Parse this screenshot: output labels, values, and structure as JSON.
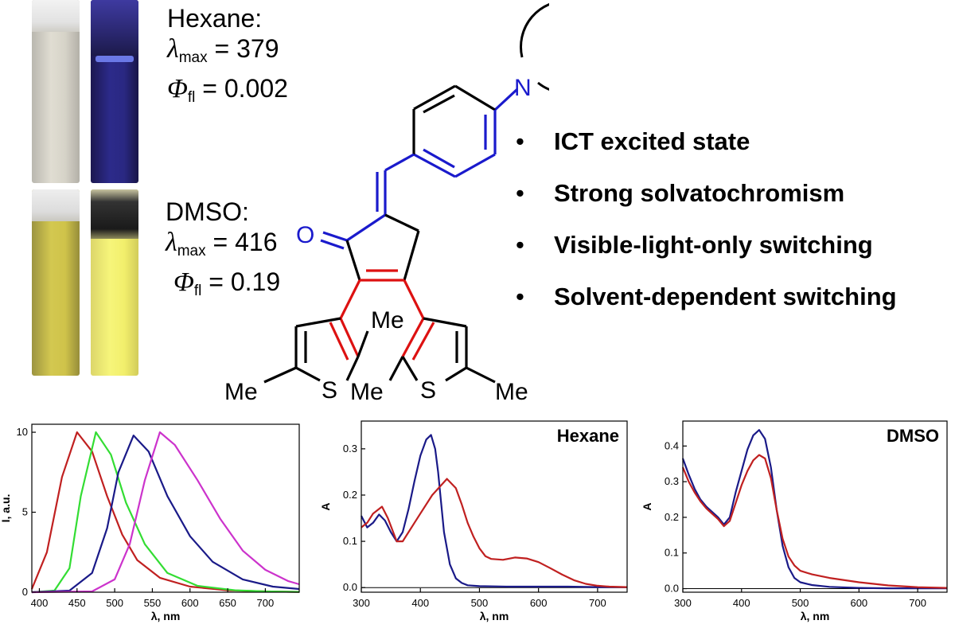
{
  "photos": {
    "hexane": [
      "hexane-ambient-cuvette",
      "hexane-uv-cuvette"
    ],
    "dmso": [
      "dmso-ambient-cuvette",
      "dmso-uv-cuvette"
    ]
  },
  "solvents": {
    "hexane": {
      "name": "Hexane:",
      "lambda_sym": "λ",
      "lambda_sub": "max",
      "lambda_val": "= 379",
      "phi_sym": "Φ",
      "phi_sub": "fl",
      "phi_val": "= 0.002"
    },
    "dmso": {
      "name": "DMSO:",
      "lambda_sym": "λ",
      "lambda_sub": "max",
      "lambda_val": "= 416",
      "phi_sym": "Φ",
      "phi_sub": "fl",
      "phi_val": "= 0.19"
    }
  },
  "structure": {
    "atoms": {
      "n": "N",
      "o": "O",
      "s1": "S",
      "s2": "S",
      "me1": "Me",
      "me2": "Me",
      "me3": "Me",
      "me4": "Me"
    },
    "colors": {
      "amine_arm": "#1a1acc",
      "switch_core": "#dd1111",
      "skeleton": "#000000"
    }
  },
  "bullets": {
    "marker": "•",
    "items": [
      "ICT excited state",
      "Strong solvatochromism",
      "Visible-light-only switching",
      "Solvent-dependent switching"
    ]
  },
  "chart_data": [
    {
      "type": "line",
      "title": "",
      "xlabel": "λ, nm",
      "ylabel": "I, a.u.",
      "xlim": [
        390,
        745
      ],
      "ylim": [
        0,
        10.5
      ],
      "xticks": [
        400,
        450,
        500,
        550,
        600,
        650,
        700
      ],
      "yticks": [
        0,
        5,
        10
      ],
      "series": [
        {
          "color": "#c02020",
          "x": [
            390,
            410,
            430,
            450,
            470,
            490,
            510,
            530,
            560,
            600,
            650,
            700,
            745
          ],
          "y": [
            0.2,
            2.5,
            7.2,
            10.0,
            8.8,
            6.0,
            3.6,
            2.0,
            0.9,
            0.35,
            0.12,
            0.05,
            0.02
          ]
        },
        {
          "color": "#33dd33",
          "x": [
            390,
            420,
            440,
            455,
            475,
            495,
            515,
            540,
            570,
            610,
            660,
            700,
            745
          ],
          "y": [
            0,
            0.1,
            1.5,
            6.0,
            10.0,
            8.6,
            5.6,
            3.0,
            1.2,
            0.4,
            0.12,
            0.05,
            0.02
          ]
        },
        {
          "color": "#1a1a88",
          "x": [
            390,
            440,
            470,
            490,
            505,
            525,
            545,
            570,
            600,
            630,
            670,
            710,
            745
          ],
          "y": [
            0,
            0.1,
            1.2,
            4.0,
            7.5,
            9.8,
            8.8,
            6.0,
            3.5,
            1.9,
            0.8,
            0.35,
            0.2
          ]
        },
        {
          "color": "#cc33cc",
          "x": [
            390,
            470,
            500,
            520,
            540,
            560,
            580,
            610,
            640,
            670,
            700,
            730,
            745
          ],
          "y": [
            0,
            0.05,
            0.8,
            3.0,
            7.0,
            10.0,
            9.2,
            7.0,
            4.6,
            2.6,
            1.4,
            0.7,
            0.5
          ]
        }
      ]
    },
    {
      "type": "line",
      "title": "Hexane",
      "xlabel": "λ, nm",
      "ylabel": "A",
      "xlim": [
        300,
        750
      ],
      "ylim": [
        -0.01,
        0.36
      ],
      "xticks": [
        300,
        400,
        500,
        600,
        700
      ],
      "yticks": [
        0.0,
        0.1,
        0.2,
        0.3
      ],
      "series": [
        {
          "color": "#1a1a88",
          "x": [
            300,
            310,
            320,
            330,
            340,
            350,
            360,
            370,
            380,
            390,
            400,
            410,
            418,
            425,
            430,
            440,
            450,
            460,
            470,
            480,
            500,
            550,
            600,
            650,
            700,
            750
          ],
          "y": [
            0.155,
            0.13,
            0.14,
            0.158,
            0.145,
            0.12,
            0.1,
            0.12,
            0.17,
            0.23,
            0.285,
            0.32,
            0.33,
            0.3,
            0.25,
            0.12,
            0.05,
            0.02,
            0.01,
            0.005,
            0.003,
            0.002,
            0.002,
            0.002,
            0.001,
            0.001
          ]
        },
        {
          "color": "#c02020",
          "x": [
            300,
            310,
            320,
            335,
            345,
            360,
            370,
            380,
            390,
            400,
            420,
            445,
            460,
            470,
            480,
            490,
            500,
            510,
            520,
            540,
            560,
            580,
            600,
            620,
            640,
            660,
            680,
            700,
            720,
            750
          ],
          "y": [
            0.13,
            0.14,
            0.16,
            0.175,
            0.15,
            0.1,
            0.1,
            0.12,
            0.14,
            0.16,
            0.2,
            0.235,
            0.215,
            0.18,
            0.14,
            0.11,
            0.085,
            0.068,
            0.062,
            0.06,
            0.065,
            0.063,
            0.055,
            0.042,
            0.028,
            0.016,
            0.008,
            0.004,
            0.002,
            0.001
          ]
        }
      ]
    },
    {
      "type": "line",
      "title": "DMSO",
      "xlabel": "λ, nm",
      "ylabel": "A",
      "xlim": [
        300,
        750
      ],
      "ylim": [
        -0.01,
        0.47
      ],
      "xticks": [
        300,
        400,
        500,
        600,
        700
      ],
      "yticks": [
        0.0,
        0.1,
        0.2,
        0.3,
        0.4
      ],
      "series": [
        {
          "color": "#1a1a88",
          "x": [
            300,
            310,
            320,
            330,
            340,
            350,
            360,
            370,
            380,
            390,
            400,
            410,
            420,
            430,
            440,
            450,
            460,
            470,
            480,
            490,
            500,
            520,
            550,
            600,
            650,
            700,
            750
          ],
          "y": [
            0.365,
            0.32,
            0.28,
            0.25,
            0.23,
            0.215,
            0.2,
            0.18,
            0.2,
            0.27,
            0.33,
            0.39,
            0.43,
            0.445,
            0.42,
            0.34,
            0.22,
            0.12,
            0.06,
            0.03,
            0.018,
            0.01,
            0.005,
            0.002,
            0.001,
            0.001,
            0.001
          ]
        },
        {
          "color": "#c02020",
          "x": [
            300,
            310,
            320,
            330,
            340,
            350,
            360,
            370,
            380,
            390,
            400,
            410,
            420,
            430,
            440,
            450,
            460,
            470,
            480,
            490,
            500,
            520,
            550,
            600,
            650,
            700,
            750
          ],
          "y": [
            0.34,
            0.3,
            0.27,
            0.245,
            0.225,
            0.21,
            0.195,
            0.175,
            0.19,
            0.24,
            0.29,
            0.33,
            0.36,
            0.375,
            0.365,
            0.31,
            0.22,
            0.14,
            0.09,
            0.065,
            0.05,
            0.04,
            0.03,
            0.018,
            0.009,
            0.004,
            0.002
          ]
        }
      ]
    }
  ]
}
